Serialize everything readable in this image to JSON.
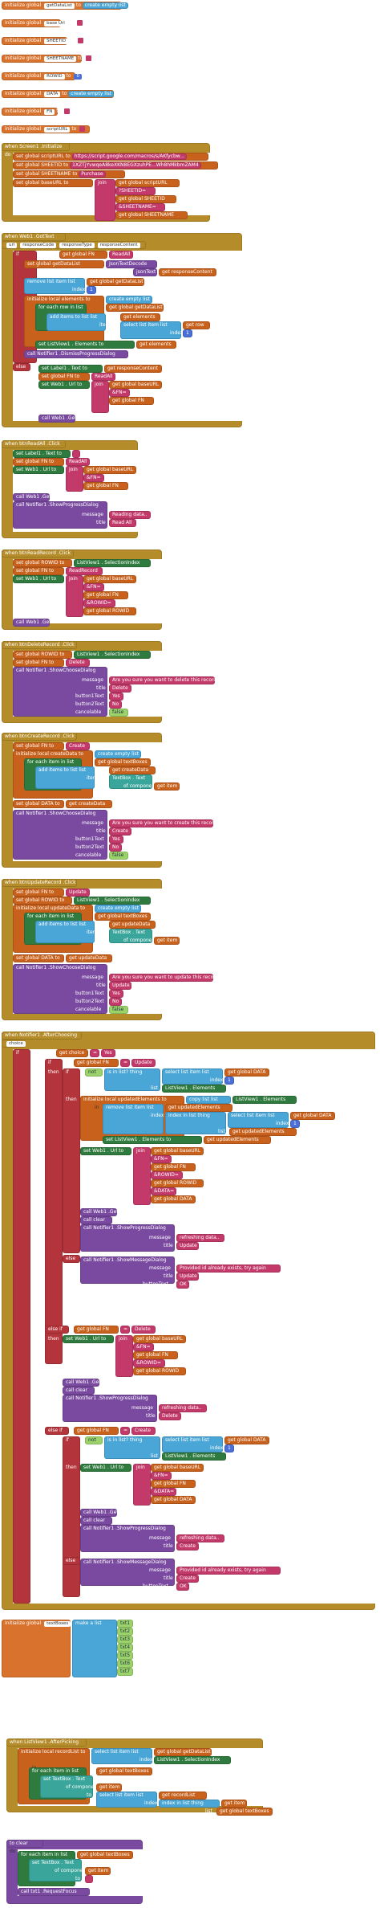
{
  "globals": [
    {
      "kw": "initialize global",
      "name": "getDataList",
      "to": "to",
      "val": "create empty list"
    },
    {
      "kw": "initialize global",
      "name": "base Url",
      "to": "to",
      "val": ""
    },
    {
      "kw": "initialize global",
      "name": "SHEETID",
      "to": "to",
      "val": ""
    },
    {
      "kw": "initialize global",
      "name": "SHEETNAME",
      "to": "to",
      "val": ""
    },
    {
      "kw": "initialize global",
      "name": "ROWID",
      "to": "to",
      "val": "0"
    },
    {
      "kw": "initialize global",
      "name": "DATA",
      "to": "to",
      "val": "create empty list"
    },
    {
      "kw": "initialize global",
      "name": "FN",
      "to": "to",
      "val": ""
    },
    {
      "kw": "initialize global",
      "name": "scriptURL",
      "to": "to",
      "val": ""
    }
  ],
  "screen_init": {
    "header": "when Screen1 .Initialize",
    "do": "do",
    "rows": [
      {
        "set": "set global scriptURL",
        "to": "to",
        "val": "https://script.google.com/macros/s/AKfycbw..."
      },
      {
        "set": "set global SHEETID",
        "to": "to",
        "val": "1XZTjYvwqeA8keXKN8EGXzuhPE...Wh8hMkbmZAM4"
      },
      {
        "set": "set global SHEETNAME",
        "to": "to",
        "val": "Purchase"
      },
      {
        "set": "set global baseURL",
        "to": "to",
        "val": "join"
      }
    ],
    "join_items": [
      "get global scriptURL",
      "?SHEETID=",
      "get global SHEETID",
      "&SHEETNAME=",
      "get global SHEETNAME"
    ]
  },
  "web_gottext": {
    "header": "when Web1 .GotText",
    "params": [
      "url",
      "responseCode",
      "responseType",
      "responseContent"
    ],
    "labels": [
      "if",
      "get global FN",
      "ReadAll",
      "set global getDataList",
      "JsonTextDecode",
      "jsonText",
      "get responseContent",
      "remove list item list",
      "get global getDataList",
      "index",
      "1",
      "initialize local elements to",
      "create empty list",
      "for each row in list",
      "get global getDataList",
      "add items to list list",
      "get elements",
      "item",
      "select list item list",
      "get row",
      "index",
      "1",
      "set ListView1 . Elements to",
      "get elements",
      "call Notifier1 .DismissProgressDialog",
      "else",
      "set Label1 . Text to",
      "get responseContent",
      "set global FN to",
      "ReadAll",
      "set Web1 . Url to",
      "join",
      "get global baseURL",
      "&FN=",
      "get global FN",
      "call Web1 .Get"
    ]
  },
  "btn_readall": {
    "header": "when btnReadAll .Click",
    "labels": [
      "set Label1 . Text to",
      "",
      "set global FN to",
      "ReadAll",
      "set Web1 . Url to",
      "join",
      "get global baseURL",
      "&FN=",
      "get global FN",
      "call Web1 .Get",
      "call Notifier1 .ShowProgressDialog",
      "message",
      "Reading data..",
      "title",
      "Read All"
    ]
  },
  "btn_readrecord": {
    "header": "when btnReadRecord .Click",
    "labels": [
      "set global ROWID to",
      "ListView1 . SelectionIndex",
      "set global FN to",
      "ReadRecord",
      "set Web1 . Url to",
      "join",
      "get global baseURL",
      "&FN=",
      "get global FN",
      "&ROWID=",
      "get global ROWID",
      "call Web1 .Get"
    ]
  },
  "btn_delete": {
    "header": "when btnDeleteRecord .Click",
    "labels": [
      "set global ROWID to",
      "ListView1 . SelectionIndex",
      "set global FN to",
      "Delete",
      "call Notifier1 .ShowChooseDialog",
      "message",
      "Are you sure you want to delete this record?",
      "title",
      "Delete",
      "button1Text",
      "Yes",
      "button2Text",
      "No",
      "cancelable",
      "false"
    ]
  },
  "btn_create": {
    "header": "when btnCreateRecord .Click",
    "labels": [
      "set global FN to",
      "Create",
      "initialize local createData to",
      "create empty list",
      "for each item in list",
      "get global textBoxes",
      "add items to list list",
      "get createData",
      "item",
      "TextBox . Text",
      "of component",
      "get item",
      "set global DATA to",
      "get createData",
      "call Notifier1 .ShowChooseDialog",
      "message",
      "Are you sure you want to create this record?",
      "title",
      "Create",
      "button1Text",
      "Yes",
      "button2Text",
      "No",
      "cancelable",
      "false"
    ]
  },
  "btn_update": {
    "header": "when btnUpdateRecord .Click",
    "labels": [
      "set global FN to",
      "Update",
      "set global ROWID to",
      "ListView1 . SelectionIndex",
      "initialize local updateData to",
      "create empty list",
      "for each item in list",
      "get global textBoxes",
      "add items to list list",
      "get updateData",
      "item",
      "TextBox . Text",
      "of component",
      "get item",
      "set global DATA to",
      "get updateData",
      "call Notifier1 .ShowChooseDialog",
      "message",
      "Are you sure you want to update this record?",
      "title",
      "Update",
      "button1Text",
      "Yes",
      "button2Text",
      "No",
      "cancelable",
      "false"
    ]
  },
  "after_choosing": {
    "header": "when Notifier1 .AfterChoosing",
    "param": "choice",
    "labels": [
      "if",
      "get choice",
      "=",
      "Yes",
      "then",
      "if",
      "get global FN",
      "=",
      "Update",
      "then",
      "if",
      "not",
      "is in list? thing",
      "select list item list",
      "get global DATA",
      "index",
      "1",
      "list",
      "ListView1 . Elements",
      "then",
      "initialize local updatedElements to",
      "copy list list",
      "ListView1 . Elements",
      "in",
      "remove list item list",
      "get updatedElements",
      "index",
      "index in list thing",
      "select list item list",
      "get global DATA",
      "index",
      "1",
      "list",
      "get updatedElements",
      "set ListView1 . Elements to",
      "get updatedElements",
      "set Web1 . Url to",
      "join",
      "get global baseURL",
      "&FN=",
      "get global FN",
      "&ROWID=",
      "get global ROWID",
      "&DATA=",
      "get global DATA",
      "call Web1 .Get",
      "call clear",
      "call Notifier1 .ShowProgressDialog",
      "message",
      "refreshing data..",
      "title",
      "Update",
      "else",
      "call Notifier1 .ShowMessageDialog",
      "message",
      "Provided id already exists, try again",
      "title",
      "Update",
      "buttonText",
      "OK",
      "else if",
      "get global FN",
      "=",
      "Delete",
      "then",
      "set Web1 . Url to",
      "join",
      "get global baseURL",
      "&FN=",
      "get global FN",
      "&ROWID=",
      "get global ROWID",
      "call Web1 .Get",
      "call clear",
      "call Notifier1 .ShowProgressDialog",
      "message",
      "refreshing data..",
      "title",
      "Delete",
      "else if",
      "get global FN",
      "=",
      "Create",
      "then",
      "if",
      "not",
      "is in list? thing",
      "select list item list",
      "get global DATA",
      "index",
      "1",
      "list",
      "ListView1 . Elements",
      "then",
      "set Web1 . Url to",
      "join",
      "get global baseURL",
      "&FN=",
      "get global FN",
      "&DATA=",
      "get global DATA",
      "call Web1 .Get",
      "call clear",
      "call Notifier1 .ShowProgressDialog",
      "message",
      "refreshing data..",
      "title",
      "Create",
      "else",
      "call Notifier1 .ShowMessageDialog",
      "message",
      "Provided id already exists, try again",
      "title",
      "Create",
      "buttonText",
      "OK"
    ]
  },
  "textboxes": {
    "kw": "initialize global",
    "name": "textBoxes",
    "to": "to",
    "make": "make a list",
    "items": [
      "txt1",
      "txt2",
      "txt3",
      "txt4",
      "txt5",
      "txt6",
      "txt7"
    ]
  },
  "after_picking": {
    "header": "when ListView1 .AfterPicking",
    "labels": [
      "initialize local recordList to",
      "select list item list",
      "get global getDataList",
      "index",
      "ListView1 . SelectionIndex",
      "in",
      "for each item in list",
      "get global textBoxes",
      "set TextBox . Text",
      "of component",
      "get item",
      "to",
      "select list item list",
      "get recordList",
      "index",
      "index in list thing",
      "get item",
      "list",
      "get global textBoxes"
    ]
  },
  "clear_proc": {
    "header": "to clear",
    "labels": [
      "do",
      "for each item in list",
      "get global textBoxes",
      "set TextBox . Text",
      "of component",
      "get item",
      "to",
      "",
      "call txt1 .RequestFocus"
    ]
  }
}
